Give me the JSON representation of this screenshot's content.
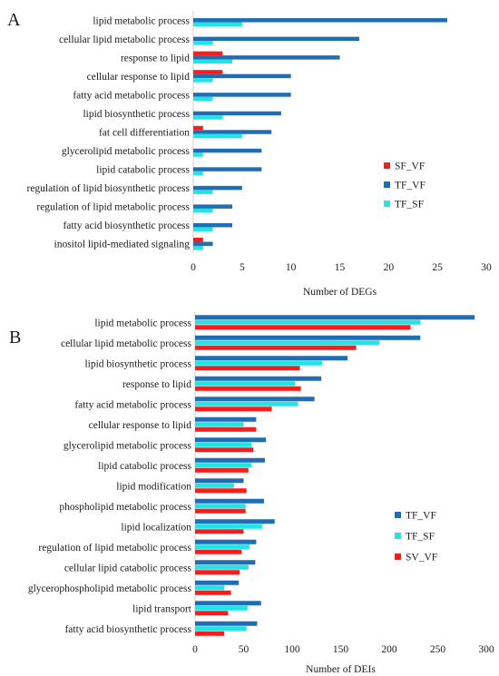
{
  "chart_data": [
    {
      "type": "bar",
      "orientation": "horizontal",
      "panel_label": "A",
      "categories": [
        "lipid metabolic process",
        "cellular lipid metabolic process",
        "response to lipid",
        "cellular response to lipid",
        "fatty acid metabolic process",
        "lipid biosynthetic process",
        "fat cell differentiation",
        "glycerolipid metabolic process",
        "lipid catabolic process",
        "regulation of lipid biosynthetic process",
        "regulation of lipid metabolic process",
        "fatty acid biosynthetic process",
        "inositol lipid-mediated signaling"
      ],
      "series": [
        {
          "name": "TF_VF",
          "color": "#1f6db5",
          "values": [
            26,
            17,
            15,
            10,
            10,
            9,
            8,
            7,
            7,
            5,
            4,
            4,
            2
          ]
        },
        {
          "name": "SF_VF",
          "color": "#ff1a1a",
          "values": [
            0,
            0,
            3,
            3,
            0,
            0,
            1,
            0,
            0,
            0,
            0,
            0,
            1
          ]
        },
        {
          "name": "TF_SF",
          "color": "#1fe5e5",
          "values": [
            5,
            2,
            4,
            2,
            2,
            3,
            5,
            1,
            1,
            2,
            2,
            2,
            1
          ]
        }
      ],
      "legend": [
        "SF_VF",
        "TF_VF",
        "TF_SF"
      ],
      "xlabel": "Number of DEGs",
      "ylabel": "",
      "xlim": [
        0,
        30
      ],
      "xticks": [
        0,
        5,
        10,
        15,
        20,
        25,
        30
      ],
      "grid": false,
      "legend_position": "right"
    },
    {
      "type": "bar",
      "orientation": "horizontal",
      "panel_label": "B",
      "categories": [
        "lipid metabolic process",
        "cellular lipid metabolic process",
        "lipid biosynthetic process",
        "response to lipid",
        "fatty acid metabolic process",
        "cellular response to lipid",
        "glycerolipid metabolic process",
        "lipid catabolic process",
        "lipid modification",
        "phospholipid metabolic process",
        "lipid localization",
        "regulation of lipid metabolic process",
        "cellular lipid catabolic process",
        "glycerophospholipid metabolic process",
        "lipid transport",
        "fatty acid biosynthetic process"
      ],
      "series": [
        {
          "name": "TF_VF",
          "color": "#1f6db5",
          "values": [
            288,
            232,
            157,
            130,
            123,
            63,
            73,
            72,
            50,
            71,
            82,
            63,
            62,
            45,
            68,
            64
          ]
        },
        {
          "name": "TF_SF",
          "color": "#1fe5e5",
          "values": [
            232,
            190,
            131,
            103,
            106,
            50,
            58,
            58,
            40,
            52,
            69,
            56,
            55,
            30,
            54,
            53
          ]
        },
        {
          "name": "SV_VF",
          "color": "#ff1a1a",
          "values": [
            222,
            166,
            108,
            109,
            79,
            63,
            60,
            55,
            53,
            52,
            50,
            48,
            46,
            37,
            34,
            30
          ]
        }
      ],
      "legend": [
        "TF_VF",
        "TF_SF",
        "SV_VF"
      ],
      "xlabel": "Number of DEIs",
      "ylabel": "",
      "xlim": [
        0,
        300
      ],
      "xticks": [
        0,
        50,
        100,
        150,
        200,
        250,
        300
      ],
      "grid": false,
      "legend_position": "right"
    }
  ]
}
